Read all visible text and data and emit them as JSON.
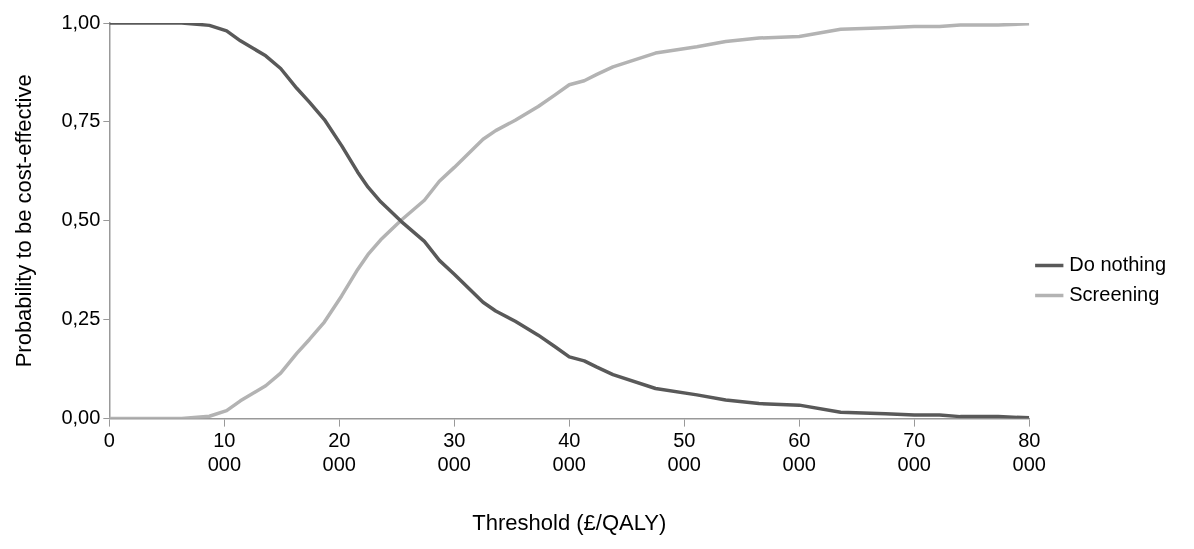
{
  "chart_data": {
    "type": "line",
    "xlabel": "Threshold (£/QALY)",
    "ylabel": "Probability to be cost-effective",
    "xlim": [
      0,
      80000
    ],
    "xticks": [
      0,
      {
        "value": 10000,
        "label": "10 000"
      },
      {
        "value": 20000,
        "label": "20 000"
      },
      {
        "value": 30000,
        "label": "30 000"
      },
      {
        "value": 40000,
        "label": "40 000"
      },
      {
        "value": 50000,
        "label": "50 000"
      },
      {
        "value": 60000,
        "label": "60 000"
      },
      {
        "value": 70000,
        "label": "70 000"
      },
      {
        "value": 80000,
        "label": "80 000"
      }
    ],
    "ylim": [
      0,
      1
    ],
    "yticks": [
      {
        "value": 0,
        "label": "0,00"
      },
      {
        "value": 0.25,
        "label": "0,25"
      },
      {
        "value": 0.5,
        "label": "0,50"
      },
      {
        "value": 0.75,
        "label": "0,75"
      },
      {
        "value": 1,
        "label": "1,00"
      }
    ],
    "x": [
      0,
      6300,
      8700,
      10200,
      11400,
      13600,
      14900,
      16300,
      17400,
      18700,
      20200,
      21600,
      22500,
      23600,
      25400,
      27400,
      28700,
      30000,
      32500,
      33600,
      35300,
      37300,
      38700,
      40000,
      41300,
      42400,
      43800,
      47500,
      51100,
      53600,
      56500,
      60000,
      63600,
      67500,
      70000,
      72200,
      74000,
      77300,
      80000
    ],
    "series": [
      {
        "name": "Do nothing",
        "color": "#595959",
        "values": [
          1,
          1,
          0.994,
          0.98,
          0.955,
          0.917,
          0.885,
          0.835,
          0.8,
          0.756,
          0.69,
          0.623,
          0.585,
          0.548,
          0.498,
          0.448,
          0.4,
          0.365,
          0.294,
          0.272,
          0.246,
          0.211,
          0.183,
          0.156,
          0.146,
          0.13,
          0.111,
          0.076,
          0.06,
          0.047,
          0.038,
          0.034,
          0.016,
          0.012,
          0.009,
          0.009,
          0.005,
          0.005,
          0.002
        ]
      },
      {
        "name": "Screening",
        "color": "#b3b3b3",
        "values": [
          0,
          0,
          0.006,
          0.02,
          0.045,
          0.083,
          0.115,
          0.165,
          0.2,
          0.244,
          0.31,
          0.377,
          0.415,
          0.452,
          0.502,
          0.552,
          0.6,
          0.635,
          0.706,
          0.728,
          0.754,
          0.789,
          0.817,
          0.844,
          0.854,
          0.87,
          0.889,
          0.924,
          0.94,
          0.953,
          0.962,
          0.966,
          0.984,
          0.988,
          0.991,
          0.991,
          0.995,
          0.995,
          0.998
        ]
      }
    ],
    "legend": "right",
    "grid": false,
    "marker": "none",
    "line_style": "solid"
  }
}
